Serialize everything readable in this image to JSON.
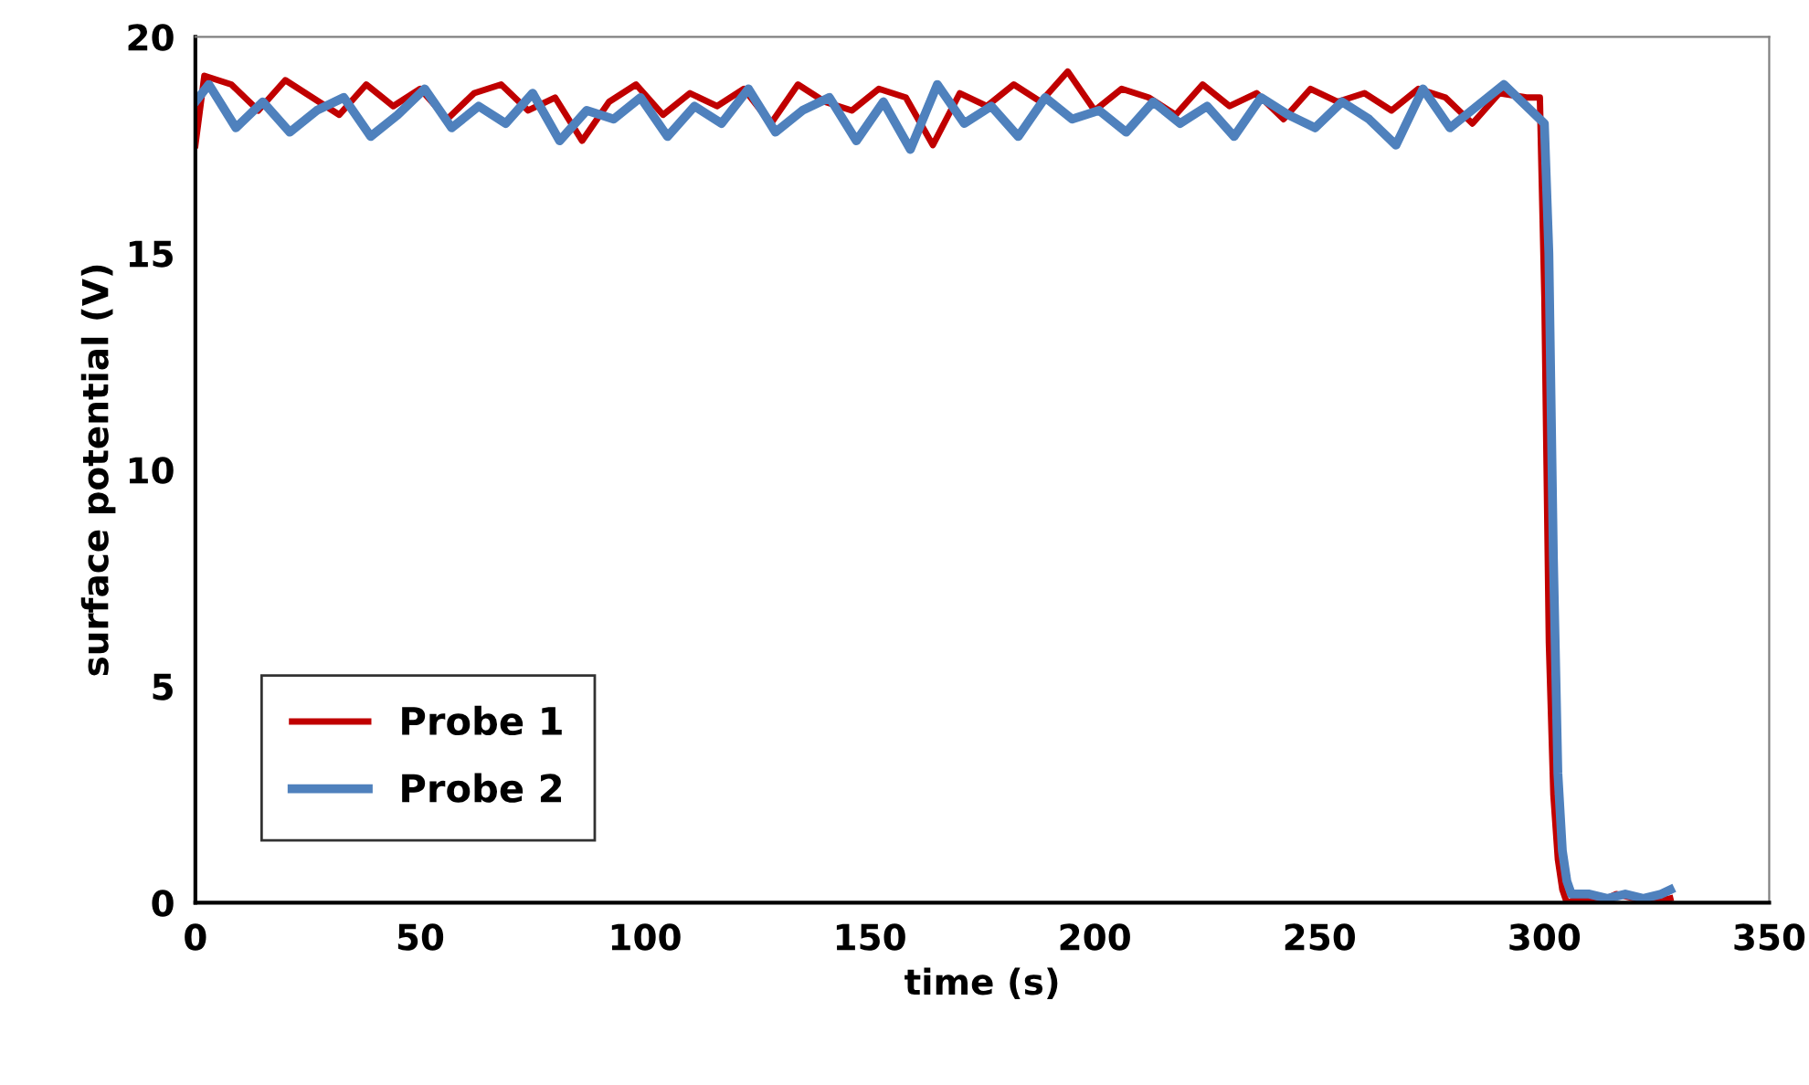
{
  "chart_data": {
    "type": "line",
    "xlabel": "time (s)",
    "ylabel": "surface potential (V)",
    "xlim": [
      0,
      350
    ],
    "xticks": [
      0,
      50,
      100,
      150,
      200,
      250,
      300,
      350
    ],
    "ylim": [
      0,
      20
    ],
    "yticks": [
      0,
      5,
      10,
      15,
      20
    ],
    "grid": false,
    "legend": "bottom left",
    "marker": "none",
    "line_style": "solid",
    "series": [
      {
        "name": "Probe 1",
        "color": "#c00000",
        "x": [
          0,
          2,
          8,
          14,
          20,
          26,
          32,
          38,
          44,
          50,
          56,
          62,
          68,
          74,
          80,
          86,
          92,
          98,
          104,
          110,
          116,
          122,
          128,
          134,
          140,
          146,
          152,
          158,
          164,
          170,
          176,
          182,
          188,
          194,
          200,
          206,
          212,
          218,
          224,
          230,
          236,
          242,
          248,
          254,
          260,
          266,
          272,
          278,
          284,
          290,
          296,
          299,
          300,
          301,
          302,
          303,
          304,
          305,
          308,
          312,
          316,
          320,
          324,
          328
        ],
        "values": [
          17.5,
          19.1,
          18.9,
          18.3,
          19.0,
          18.6,
          18.2,
          18.9,
          18.4,
          18.8,
          18.1,
          18.7,
          18.9,
          18.3,
          18.6,
          17.6,
          18.5,
          18.9,
          18.2,
          18.7,
          18.4,
          18.8,
          18.0,
          18.9,
          18.5,
          18.3,
          18.8,
          18.6,
          17.5,
          18.7,
          18.4,
          18.9,
          18.5,
          19.2,
          18.3,
          18.8,
          18.6,
          18.2,
          18.9,
          18.4,
          18.7,
          18.1,
          18.8,
          18.5,
          18.7,
          18.3,
          18.8,
          18.6,
          18.0,
          18.7,
          18.6,
          18.6,
          14,
          6,
          2.5,
          1.0,
          0.3,
          0.0,
          0.1,
          0.0,
          0.2,
          0.1,
          0.0,
          0.1
        ]
      },
      {
        "name": "Probe 2",
        "color": "#4f81bd",
        "x": [
          0,
          3,
          9,
          15,
          21,
          27,
          33,
          39,
          45,
          51,
          57,
          63,
          69,
          75,
          81,
          87,
          93,
          99,
          105,
          111,
          117,
          123,
          129,
          135,
          141,
          147,
          153,
          159,
          165,
          171,
          177,
          183,
          189,
          195,
          201,
          207,
          213,
          219,
          225,
          231,
          237,
          243,
          249,
          255,
          261,
          267,
          273,
          279,
          285,
          291,
          297,
          300,
          301,
          302,
          303,
          304,
          305,
          306,
          310,
          314,
          318,
          322,
          326,
          328
        ],
        "values": [
          18.5,
          18.9,
          17.9,
          18.5,
          17.8,
          18.3,
          18.6,
          17.7,
          18.2,
          18.8,
          17.9,
          18.4,
          18.0,
          18.7,
          17.6,
          18.3,
          18.1,
          18.6,
          17.7,
          18.4,
          18.0,
          18.8,
          17.8,
          18.3,
          18.6,
          17.6,
          18.5,
          17.4,
          18.9,
          18.0,
          18.4,
          17.7,
          18.6,
          18.1,
          18.3,
          17.8,
          18.5,
          18.0,
          18.4,
          17.7,
          18.6,
          18.2,
          17.9,
          18.5,
          18.1,
          17.5,
          18.8,
          17.9,
          18.4,
          18.9,
          18.3,
          18.0,
          15,
          8,
          3,
          1.2,
          0.5,
          0.2,
          0.2,
          0.1,
          0.2,
          0.1,
          0.2,
          0.3
        ]
      }
    ]
  }
}
